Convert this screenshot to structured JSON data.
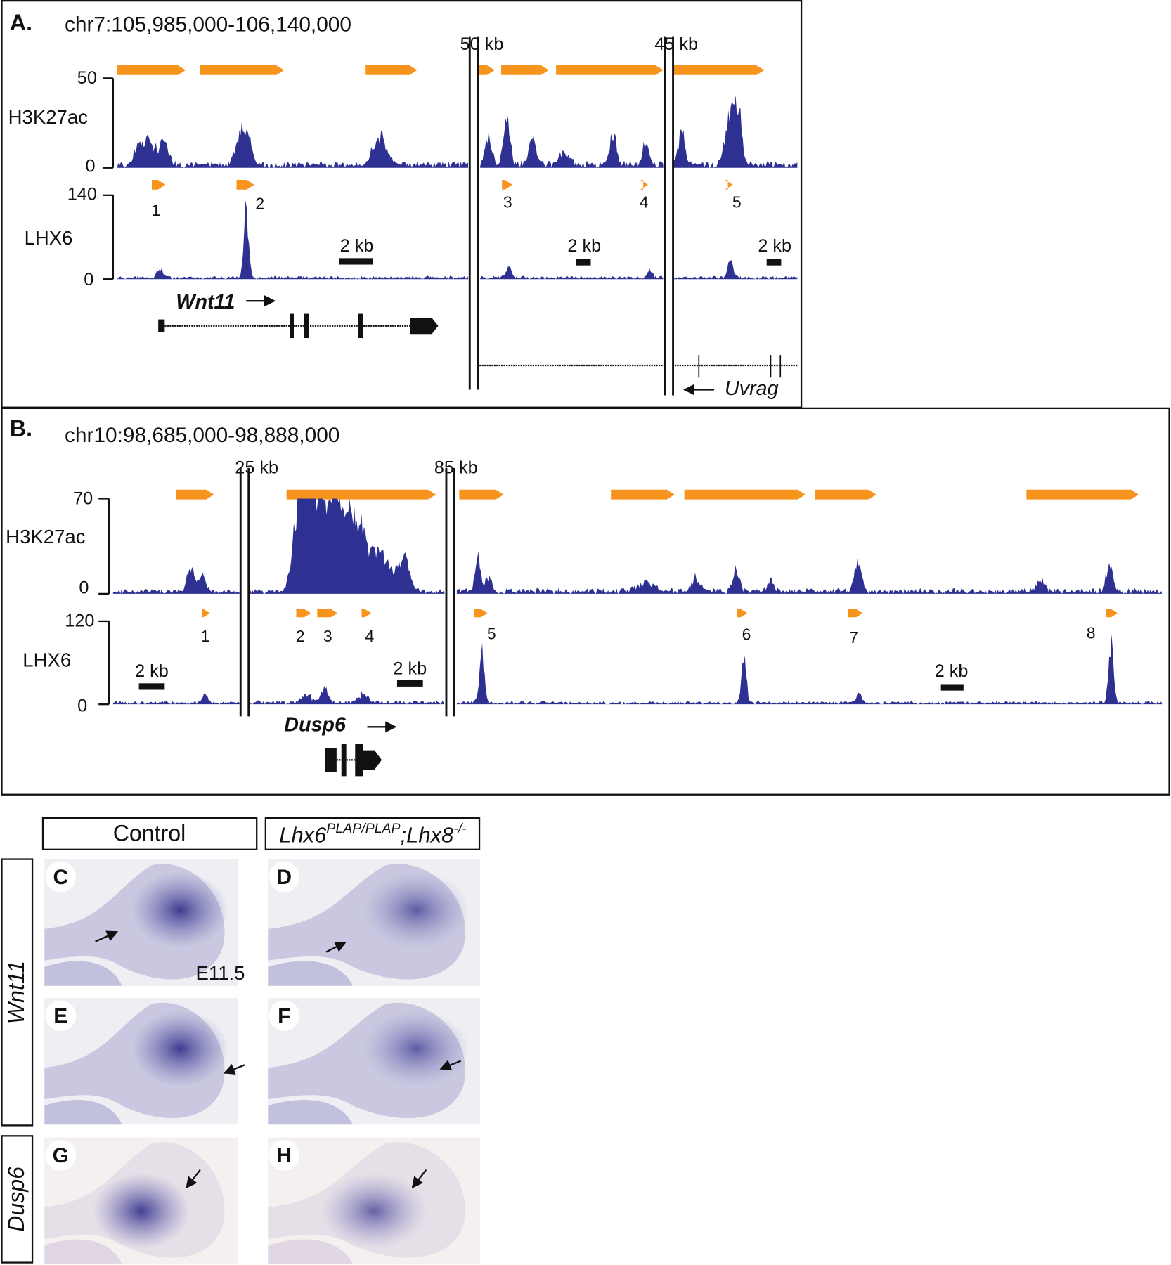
{
  "panel_a": {
    "label": "A.",
    "region": "chr7:105,985,000-106,140,000",
    "breaks": [
      "50 kb",
      "45 kb"
    ],
    "tracks": [
      {
        "name": "H3K27ac",
        "max": 50,
        "min": 0
      },
      {
        "name": "LHX6",
        "max": 140,
        "min": 0
      }
    ],
    "peaks": [
      "1",
      "2",
      "3",
      "4",
      "5"
    ],
    "scale_bars": [
      "2 kb",
      "2 kb",
      "2 kb"
    ],
    "genes": [
      "Wnt11",
      "Uvrag"
    ]
  },
  "panel_b": {
    "label": "B.",
    "region": "chr10:98,685,000-98,888,000",
    "breaks": [
      "25 kb",
      "85 kb"
    ],
    "tracks": [
      {
        "name": "H3K27ac",
        "max": 70,
        "min": 0
      },
      {
        "name": "LHX6",
        "max": 120,
        "min": 0
      }
    ],
    "peaks": [
      "1",
      "2",
      "3",
      "4",
      "5",
      "6",
      "7",
      "8"
    ],
    "scale_bars": [
      "2 kb",
      "2 kb",
      "2 kb"
    ],
    "genes": [
      "Dusp6"
    ]
  },
  "ish": {
    "columns": [
      "Control",
      {
        "gene1": "Lhx6",
        "allele1": "PLAP/PLAP",
        "gene2": ";Lhx8",
        "allele2": "-/-"
      }
    ],
    "rows": [
      "Wnt11",
      "Dusp6"
    ],
    "panels": [
      "C",
      "D",
      "E",
      "F",
      "G",
      "H"
    ],
    "stage": "E11.5"
  }
}
